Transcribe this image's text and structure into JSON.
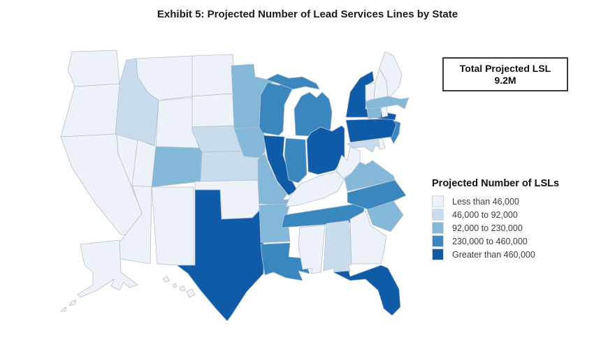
{
  "title": "Exhibit 5: Projected Number of Lead Services Lines by State",
  "total_box": {
    "line1": "Total Projected LSL",
    "line2": "9.2M"
  },
  "legend": {
    "title": "Projected Number of LSLs",
    "items": [
      {
        "label": "Less than 46,000",
        "color": "#edf2f9"
      },
      {
        "label": "46,000 to 92,000",
        "color": "#c9dcee"
      },
      {
        "label": "92,000 to 230,000",
        "color": "#84b8d8"
      },
      {
        "label": "230,000 to 460,000",
        "color": "#3a87c0"
      },
      {
        "label": "Greater than 460,000",
        "color": "#0f5ba7"
      }
    ]
  },
  "chart_data": {
    "type": "heatmap",
    "subtype": "us-choropleth",
    "title": "Exhibit 5: Projected Number of Lead Services Lines by State",
    "total_label": "Total Projected LSL",
    "total_value": "9.2M",
    "legend_title": "Projected Number of LSLs",
    "categories": [
      "Less than 46,000",
      "46,000 to 92,000",
      "92,000 to 230,000",
      "230,000 to 460,000",
      "Greater than 460,000"
    ],
    "colors": [
      "#edf2f9",
      "#c9dcee",
      "#84b8d8",
      "#3a87c0",
      "#0f5ba7"
    ],
    "states": [
      {
        "id": "WA",
        "name": "Washington",
        "category": 0
      },
      {
        "id": "OR",
        "name": "Oregon",
        "category": 0
      },
      {
        "id": "CA",
        "name": "California",
        "category": 0
      },
      {
        "id": "NV",
        "name": "Nevada",
        "category": 0
      },
      {
        "id": "ID",
        "name": "Idaho",
        "category": 1
      },
      {
        "id": "MT",
        "name": "Montana",
        "category": 0
      },
      {
        "id": "WY",
        "name": "Wyoming",
        "category": 0
      },
      {
        "id": "UT",
        "name": "Utah",
        "category": 0
      },
      {
        "id": "AZ",
        "name": "Arizona",
        "category": 0
      },
      {
        "id": "NM",
        "name": "New Mexico",
        "category": 0
      },
      {
        "id": "CO",
        "name": "Colorado",
        "category": 2
      },
      {
        "id": "ND",
        "name": "North Dakota",
        "category": 0
      },
      {
        "id": "SD",
        "name": "South Dakota",
        "category": 0
      },
      {
        "id": "NE",
        "name": "Nebraska",
        "category": 1
      },
      {
        "id": "KS",
        "name": "Kansas",
        "category": 1
      },
      {
        "id": "OK",
        "name": "Oklahoma",
        "category": 0
      },
      {
        "id": "TX",
        "name": "Texas",
        "category": 4
      },
      {
        "id": "MN",
        "name": "Minnesota",
        "category": 2
      },
      {
        "id": "IA",
        "name": "Iowa",
        "category": 2
      },
      {
        "id": "MO",
        "name": "Missouri",
        "category": 2
      },
      {
        "id": "AR",
        "name": "Arkansas",
        "category": 2
      },
      {
        "id": "LA",
        "name": "Louisiana",
        "category": 3
      },
      {
        "id": "WI",
        "name": "Wisconsin",
        "category": 3
      },
      {
        "id": "IL",
        "name": "Illinois",
        "category": 4
      },
      {
        "id": "MI",
        "name": "Michigan",
        "category": 3
      },
      {
        "id": "IN",
        "name": "Indiana",
        "category": 3
      },
      {
        "id": "OH",
        "name": "Ohio",
        "category": 4
      },
      {
        "id": "KY",
        "name": "Kentucky",
        "category": 0
      },
      {
        "id": "TN",
        "name": "Tennessee",
        "category": 3
      },
      {
        "id": "MS",
        "name": "Mississippi",
        "category": 0
      },
      {
        "id": "AL",
        "name": "Alabama",
        "category": 1
      },
      {
        "id": "GA",
        "name": "Georgia",
        "category": 0
      },
      {
        "id": "FL",
        "name": "Florida",
        "category": 4
      },
      {
        "id": "SC",
        "name": "South Carolina",
        "category": 2
      },
      {
        "id": "NC",
        "name": "North Carolina",
        "category": 3
      },
      {
        "id": "VA",
        "name": "Virginia",
        "category": 2
      },
      {
        "id": "WV",
        "name": "West Virginia",
        "category": 0
      },
      {
        "id": "MD",
        "name": "Maryland",
        "category": 1
      },
      {
        "id": "DE",
        "name": "Delaware",
        "category": 0
      },
      {
        "id": "NJ",
        "name": "New Jersey",
        "category": 3
      },
      {
        "id": "PA",
        "name": "Pennsylvania",
        "category": 4
      },
      {
        "id": "NY",
        "name": "New York",
        "category": 4
      },
      {
        "id": "CT",
        "name": "Connecticut",
        "category": 2
      },
      {
        "id": "RI",
        "name": "Rhode Island",
        "category": 0
      },
      {
        "id": "MA",
        "name": "Massachusetts",
        "category": 2
      },
      {
        "id": "VT",
        "name": "Vermont",
        "category": 0
      },
      {
        "id": "NH",
        "name": "New Hampshire",
        "category": 0
      },
      {
        "id": "ME",
        "name": "Maine",
        "category": 0
      },
      {
        "id": "AK",
        "name": "Alaska",
        "category": 0
      },
      {
        "id": "HI",
        "name": "Hawaii",
        "category": 0
      }
    ]
  }
}
